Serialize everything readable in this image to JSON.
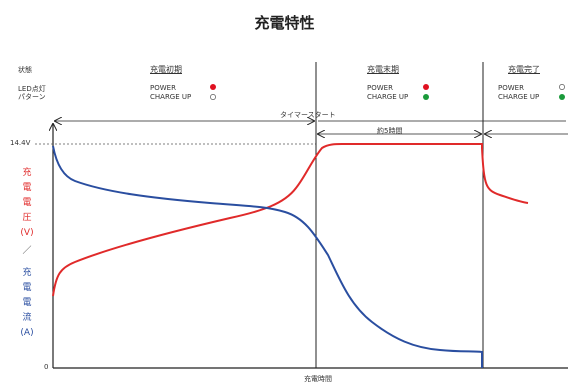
{
  "title": "充電特性",
  "header": {
    "state_label": "状態",
    "led_label_1": "LED点灯",
    "led_label_2": "パターン",
    "phases": [
      {
        "name": "充電初期",
        "power_text": "POWER",
        "charge_text": "CHARGE UP",
        "power_led": "red",
        "charge_led": "off"
      },
      {
        "name": "充電末期",
        "power_text": "POWER",
        "charge_text": "CHARGE UP",
        "power_led": "red",
        "charge_led": "green"
      },
      {
        "name": "充電完了",
        "power_text": "POWER",
        "charge_text": "CHARGE UP",
        "power_led": "off",
        "charge_led": "green"
      }
    ]
  },
  "annotations": {
    "timer_start": "タイマースタート",
    "duration": "約5時間"
  },
  "axes": {
    "voltage_level": "14.4V",
    "origin": "0",
    "x_label": "充電時間",
    "y_label_voltage": [
      "充",
      "電",
      "電",
      "圧",
      "(V)"
    ],
    "y_separator": "／",
    "y_label_current": [
      "充",
      "電",
      "電",
      "流",
      "(A)"
    ]
  },
  "colors": {
    "voltage": "#e02a2a",
    "current": "#2a4ea0",
    "led_red": "#e01020",
    "led_green": "#1a9a3a",
    "axis": "#222222"
  }
}
